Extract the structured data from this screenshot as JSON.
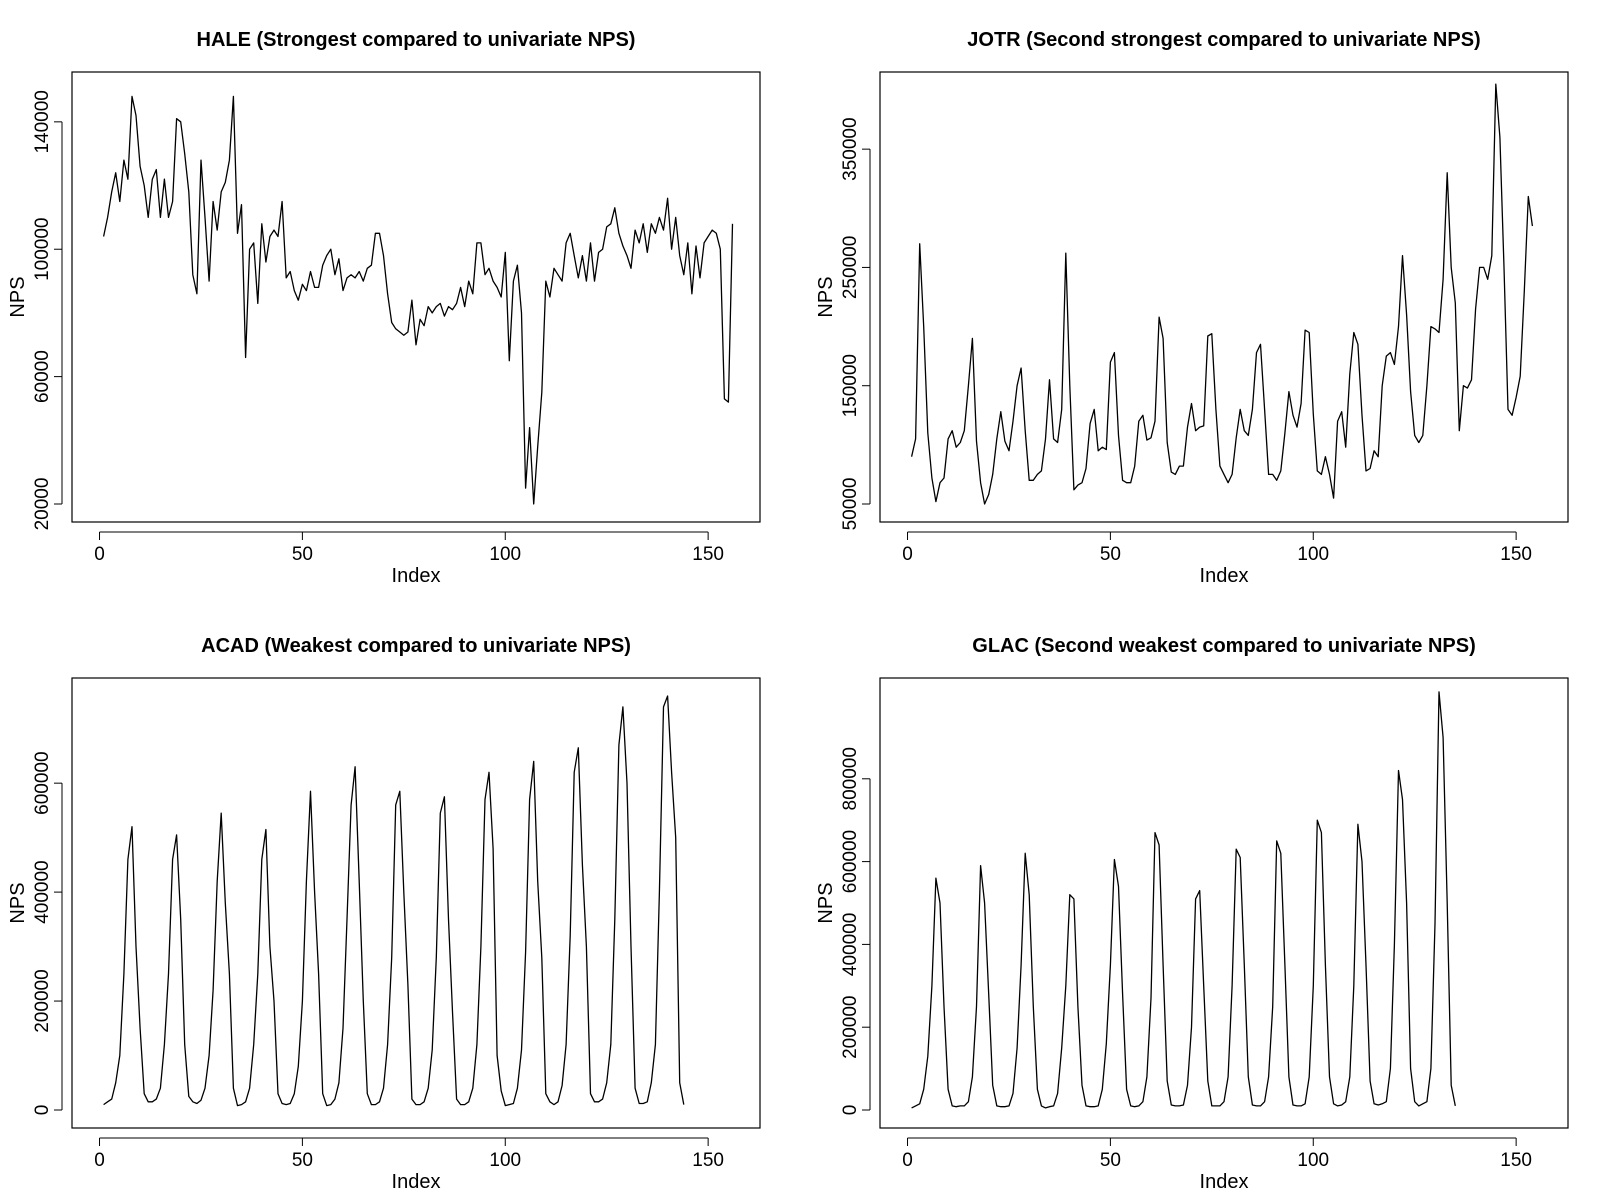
{
  "chart_data": [
    {
      "type": "line",
      "title": "HALE (Strongest compared to univariate NPS)",
      "xlabel": "Index",
      "ylabel": "NPS",
      "xlim": [
        0,
        156
      ],
      "ylim": [
        20000,
        150000
      ],
      "xticks": [
        0,
        50,
        100,
        150
      ],
      "yticks": [
        20000,
        60000,
        100000,
        140000
      ],
      "xtick_labels": [
        "0",
        "50",
        "100",
        "150"
      ],
      "ytick_labels": [
        "20000",
        "60000",
        "100000",
        "140000"
      ],
      "grid": false,
      "series": [
        {
          "values": [
            104000,
            110000,
            118000,
            124000,
            115000,
            128000,
            122000,
            148000,
            142000,
            126000,
            120000,
            110000,
            122000,
            125000,
            110000,
            122000,
            110000,
            115000,
            141000,
            140000,
            130000,
            118000,
            92000,
            86000,
            128000,
            110000,
            90000,
            115000,
            106000,
            118000,
            121000,
            128000,
            148000,
            105000,
            114000,
            66000,
            100000,
            102000,
            83000,
            108000,
            96000,
            104000,
            106000,
            104000,
            115000,
            91000,
            93000,
            87000,
            84000,
            89000,
            87000,
            93000,
            88000,
            88000,
            95000,
            98000,
            100000,
            92000,
            97000,
            87000,
            91000,
            92000,
            91000,
            93000,
            90000,
            94000,
            95000,
            105000,
            105000,
            98000,
            86000,
            77000,
            75000,
            74000,
            73000,
            74000,
            84000,
            70000,
            78000,
            76000,
            82000,
            80000,
            82000,
            83000,
            79000,
            82000,
            81000,
            83000,
            88000,
            82000,
            90000,
            86000,
            102000,
            102000,
            92000,
            94000,
            90000,
            88000,
            85000,
            99000,
            65000,
            90000,
            95000,
            80000,
            25000,
            44000,
            20000,
            38000,
            55000,
            90000,
            85000,
            94000,
            92000,
            90000,
            102000,
            105000,
            98000,
            91000,
            98000,
            90000,
            102000,
            90000,
            99000,
            100000,
            107000,
            108000,
            113000,
            105000,
            101000,
            98000,
            94000,
            106000,
            102000,
            108000,
            99000,
            108000,
            105000,
            110000,
            106000,
            116000,
            100000,
            110000,
            98000,
            92000,
            102000,
            86000,
            101000,
            91000,
            102000,
            104000,
            106000,
            105000,
            100000,
            53000,
            52000,
            108000
          ]
        }
      ]
    },
    {
      "type": "line",
      "title": "JOTR (Second strongest compared to univariate NPS)",
      "xlabel": "Index",
      "ylabel": "NPS",
      "xlim": [
        0,
        156
      ],
      "ylim": [
        50000,
        400000
      ],
      "xticks": [
        0,
        50,
        100,
        150
      ],
      "yticks": [
        50000,
        150000,
        250000,
        350000
      ],
      "xtick_labels": [
        "0",
        "50",
        "100",
        "150"
      ],
      "ytick_labels": [
        "50000",
        "150000",
        "250000",
        "350000"
      ],
      "grid": false,
      "series": [
        {
          "values": [
            90000,
            105000,
            270000,
            200000,
            110000,
            72000,
            52000,
            68000,
            72000,
            105000,
            112000,
            98000,
            102000,
            112000,
            150000,
            190000,
            103000,
            68000,
            50000,
            58000,
            75000,
            105000,
            128000,
            103000,
            95000,
            120000,
            150000,
            165000,
            112000,
            70000,
            70000,
            75000,
            78000,
            105000,
            155000,
            105000,
            102000,
            130000,
            262000,
            150000,
            62000,
            66000,
            68000,
            80000,
            118000,
            130000,
            95000,
            98000,
            96000,
            170000,
            178000,
            108000,
            70000,
            68000,
            68000,
            82000,
            120000,
            125000,
            104000,
            106000,
            120000,
            208000,
            190000,
            102000,
            77000,
            75000,
            82000,
            82000,
            115000,
            135000,
            112000,
            115000,
            116000,
            192000,
            194000,
            130000,
            82000,
            75000,
            68000,
            75000,
            106000,
            130000,
            112000,
            108000,
            130000,
            178000,
            185000,
            130000,
            75000,
            75000,
            70000,
            78000,
            110000,
            145000,
            125000,
            115000,
            135000,
            197000,
            195000,
            126000,
            78000,
            75000,
            90000,
            75000,
            55000,
            120000,
            128000,
            98000,
            160000,
            195000,
            185000,
            125000,
            78000,
            80000,
            95000,
            90000,
            150000,
            175000,
            178000,
            168000,
            200000,
            260000,
            210000,
            145000,
            108000,
            102000,
            108000,
            150000,
            200000,
            198000,
            195000,
            240000,
            330000,
            250000,
            220000,
            112000,
            150000,
            148000,
            155000,
            215000,
            250000,
            250000,
            240000,
            260000,
            405000,
            360000,
            250000,
            130000,
            125000,
            140000,
            158000,
            230000,
            310000,
            285000
          ]
        }
      ]
    },
    {
      "type": "line",
      "title": "ACAD (Weakest compared to univariate NPS)",
      "xlabel": "Index",
      "ylabel": "NPS",
      "xlim": [
        0,
        156
      ],
      "ylim": [
        0,
        760000
      ],
      "xticks": [
        0,
        50,
        100,
        150
      ],
      "yticks": [
        0,
        200000,
        400000,
        600000
      ],
      "xtick_labels": [
        "0",
        "50",
        "100",
        "150"
      ],
      "ytick_labels": [
        "0",
        "200000",
        "400000",
        "600000"
      ],
      "grid": false,
      "series": [
        {
          "values": [
            10000,
            15000,
            20000,
            50000,
            100000,
            250000,
            460000,
            520000,
            300000,
            150000,
            30000,
            15000,
            15000,
            20000,
            40000,
            120000,
            250000,
            460000,
            505000,
            350000,
            120000,
            25000,
            15000,
            12000,
            18000,
            40000,
            100000,
            220000,
            420000,
            545000,
            380000,
            250000,
            40000,
            8000,
            10000,
            15000,
            40000,
            120000,
            250000,
            460000,
            515000,
            300000,
            200000,
            30000,
            12000,
            10000,
            12000,
            30000,
            80000,
            200000,
            420000,
            585000,
            400000,
            250000,
            30000,
            8000,
            10000,
            20000,
            50000,
            150000,
            350000,
            560000,
            630000,
            420000,
            200000,
            30000,
            10000,
            10000,
            15000,
            40000,
            120000,
            280000,
            560000,
            585000,
            400000,
            230000,
            20000,
            10000,
            10000,
            15000,
            40000,
            110000,
            280000,
            545000,
            575000,
            350000,
            180000,
            20000,
            10000,
            10000,
            15000,
            40000,
            120000,
            300000,
            570000,
            620000,
            480000,
            100000,
            35000,
            8000,
            10000,
            12000,
            40000,
            110000,
            290000,
            570000,
            640000,
            420000,
            280000,
            30000,
            15000,
            10000,
            15000,
            45000,
            120000,
            320000,
            620000,
            665000,
            450000,
            300000,
            30000,
            15000,
            15000,
            20000,
            50000,
            120000,
            350000,
            670000,
            740000,
            600000,
            300000,
            40000,
            12000,
            12000,
            15000,
            50000,
            120000,
            400000,
            740000,
            760000,
            620000,
            500000,
            50000,
            10000
          ]
        }
      ]
    },
    {
      "type": "line",
      "title": "GLAC (Second weakest compared to univariate NPS)",
      "xlabel": "Index",
      "ylabel": "NPS",
      "xlim": [
        0,
        156
      ],
      "ylim": [
        0,
        1000000
      ],
      "xticks": [
        0,
        50,
        100,
        150
      ],
      "yticks": [
        0,
        200000,
        400000,
        600000,
        800000
      ],
      "xtick_labels": [
        "0",
        "50",
        "100",
        "150"
      ],
      "ytick_labels": [
        "0",
        "200000",
        "400000",
        "600000",
        "800000"
      ],
      "grid": false,
      "series": [
        {
          "values": [
            5000,
            10000,
            15000,
            50000,
            130000,
            300000,
            560000,
            500000,
            250000,
            50000,
            10000,
            8000,
            10000,
            10000,
            20000,
            80000,
            250000,
            590000,
            500000,
            280000,
            60000,
            10000,
            8000,
            8000,
            10000,
            40000,
            150000,
            350000,
            620000,
            520000,
            250000,
            50000,
            10000,
            5000,
            8000,
            10000,
            40000,
            150000,
            300000,
            520000,
            510000,
            250000,
            60000,
            10000,
            8000,
            8000,
            10000,
            50000,
            160000,
            350000,
            605000,
            540000,
            280000,
            50000,
            10000,
            8000,
            10000,
            20000,
            80000,
            270000,
            670000,
            640000,
            350000,
            70000,
            12000,
            10000,
            10000,
            12000,
            60000,
            200000,
            510000,
            530000,
            300000,
            70000,
            10000,
            10000,
            10000,
            20000,
            80000,
            300000,
            630000,
            610000,
            350000,
            80000,
            12000,
            10000,
            10000,
            20000,
            80000,
            250000,
            650000,
            620000,
            350000,
            80000,
            12000,
            10000,
            10000,
            15000,
            80000,
            300000,
            700000,
            670000,
            350000,
            80000,
            15000,
            10000,
            12000,
            20000,
            80000,
            300000,
            690000,
            600000,
            350000,
            70000,
            15000,
            12000,
            15000,
            20000,
            100000,
            400000,
            820000,
            750000,
            500000,
            100000,
            20000,
            10000,
            15000,
            20000,
            100000,
            450000,
            1010000,
            900000,
            500000,
            60000,
            10000
          ]
        }
      ]
    }
  ]
}
